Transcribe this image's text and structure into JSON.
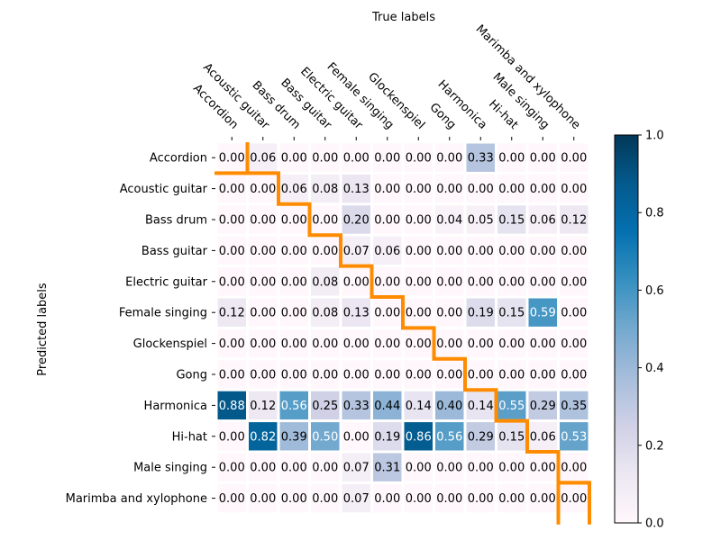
{
  "chart_data": {
    "type": "heatmap",
    "xlabel": "True labels",
    "ylabel": "Predicted labels",
    "colorscale": [
      "#fff7fb",
      "#ece7f2",
      "#d0d1e6",
      "#a6bddb",
      "#74a9cf",
      "#3690c0",
      "#0570b0",
      "#045a8d",
      "#023858"
    ],
    "highlight_color": "#ff8c00",
    "zlim": [
      0,
      1
    ],
    "colorbar_ticks": [
      "0.0",
      "0.2",
      "0.4",
      "0.6",
      "0.8",
      "1.0"
    ],
    "columns": [
      "Accordion",
      "Acoustic guitar",
      "Bass drum",
      "Bass guitar",
      "Electric guitar",
      "Female singing",
      "Glockenspiel",
      "Gong",
      "Harmonica",
      "Hi-hat",
      "Male singing",
      "Marimba and xylophone"
    ],
    "rows": [
      "Accordion",
      "Acoustic guitar",
      "Bass drum",
      "Bass guitar",
      "Electric guitar",
      "Female singing",
      "Glockenspiel",
      "Gong",
      "Harmonica",
      "Hi-hat",
      "Male singing",
      "Marimba and xylophone"
    ],
    "values": [
      [
        "0.00",
        "0.06",
        "0.00",
        "0.00",
        "0.00",
        "0.00",
        "0.00",
        "0.00",
        "0.33",
        "0.00",
        "0.00",
        "0.00"
      ],
      [
        "0.00",
        "0.00",
        "0.06",
        "0.08",
        "0.13",
        "0.00",
        "0.00",
        "0.00",
        "0.00",
        "0.00",
        "0.00",
        "0.00"
      ],
      [
        "0.00",
        "0.00",
        "0.00",
        "0.00",
        "0.20",
        "0.00",
        "0.00",
        "0.04",
        "0.05",
        "0.15",
        "0.06",
        "0.12"
      ],
      [
        "0.00",
        "0.00",
        "0.00",
        "0.00",
        "0.07",
        "0.06",
        "0.00",
        "0.00",
        "0.00",
        "0.00",
        "0.00",
        "0.00"
      ],
      [
        "0.00",
        "0.00",
        "0.00",
        "0.08",
        "0.00",
        "0.00",
        "0.00",
        "0.00",
        "0.00",
        "0.00",
        "0.00",
        "0.00"
      ],
      [
        "0.12",
        "0.00",
        "0.00",
        "0.08",
        "0.13",
        "0.00",
        "0.00",
        "0.00",
        "0.19",
        "0.15",
        "0.59",
        "0.00"
      ],
      [
        "0.00",
        "0.00",
        "0.00",
        "0.00",
        "0.00",
        "0.00",
        "0.00",
        "0.00",
        "0.00",
        "0.00",
        "0.00",
        "0.00"
      ],
      [
        "0.00",
        "0.00",
        "0.00",
        "0.00",
        "0.00",
        "0.00",
        "0.00",
        "0.00",
        "0.00",
        "0.00",
        "0.00",
        "0.00"
      ],
      [
        "0.88",
        "0.12",
        "0.56",
        "0.25",
        "0.33",
        "0.44",
        "0.14",
        "0.40",
        "0.14",
        "0.55",
        "0.29",
        "0.35"
      ],
      [
        "0.00",
        "0.82",
        "0.39",
        "0.50",
        "0.00",
        "0.19",
        "0.86",
        "0.56",
        "0.29",
        "0.15",
        "0.06",
        "0.53"
      ],
      [
        "0.00",
        "0.00",
        "0.00",
        "0.00",
        "0.07",
        "0.31",
        "0.00",
        "0.00",
        "0.00",
        "0.00",
        "0.00",
        "0.00"
      ],
      [
        "0.00",
        "0.00",
        "0.00",
        "0.00",
        "0.07",
        "0.00",
        "0.00",
        "0.00",
        "0.00",
        "0.00",
        "0.00",
        "0.00"
      ]
    ]
  }
}
